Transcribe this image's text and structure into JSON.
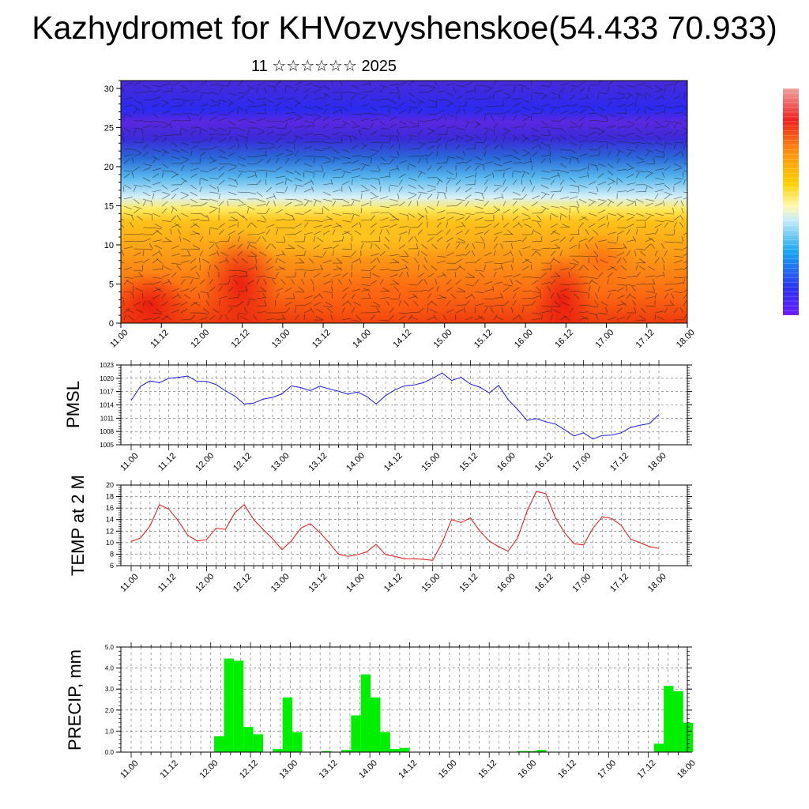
{
  "title": "Kazhydromet for KHVozvyshenskoe(54.433 70.933)",
  "subtitle": "11 ☆☆☆☆☆☆ 2025",
  "colors": {
    "pmsl_line": "#1a1adb",
    "temp_line": "#e01010",
    "precip_bar": "#00ee00"
  },
  "chart_data": [
    {
      "type": "heatmap",
      "title": "",
      "xlabel": "",
      "ylabel": "",
      "ylim": [
        0,
        31
      ],
      "yticks": [
        "0",
        "5",
        "10",
        "15",
        "20",
        "25",
        "30"
      ],
      "xticks": [
        "11.00",
        "11.12",
        "12.00",
        "12.12",
        "13.00",
        "13.12",
        "14.00",
        "14.12",
        "15.00",
        "15.12",
        "16.00",
        "16.12",
        "17.00",
        "17.12",
        "18.00"
      ],
      "colorbar": "blue-to-red",
      "overlay": "wind barbs"
    },
    {
      "type": "line",
      "ylabel": "PMSL",
      "ylim": [
        1005,
        1023
      ],
      "yticks": [
        "1005",
        "1008",
        "1011",
        "1014",
        "1017",
        "1020",
        "1023"
      ],
      "xticks": [
        "11.00",
        "11.12",
        "12.00",
        "12.12",
        "13.00",
        "13.12",
        "14.00",
        "14.12",
        "15.00",
        "15.12",
        "16.00",
        "16.12",
        "17.00",
        "17.12",
        "18.00"
      ],
      "series": [
        {
          "values": [
            1015.0,
            1018.2,
            1019.4,
            1019.0,
            1020.0,
            1020.2,
            1020.5,
            1019.3,
            1019.3,
            1018.6,
            1017.2,
            1016.0,
            1014.2,
            1014.4,
            1015.3,
            1015.7,
            1016.5,
            1018.3,
            1017.9,
            1017.2,
            1018.2,
            1017.6,
            1017.1,
            1016.4,
            1016.9,
            1015.9,
            1014.2,
            1016.1,
            1017.4,
            1018.3,
            1018.5,
            1019.0,
            1020.0,
            1021.2,
            1019.5,
            1020.2,
            1018.7,
            1018.0,
            1016.7,
            1018.4,
            1015.2,
            1013.0,
            1010.5,
            1010.9,
            1010.2,
            1009.7,
            1008.4,
            1007.0,
            1007.7,
            1006.3,
            1007.1,
            1007.2,
            1007.7,
            1008.9,
            1009.4,
            1009.8,
            1011.8
          ]
        }
      ]
    },
    {
      "type": "line",
      "ylabel": "TEMP at 2 M",
      "ylim": [
        6,
        20
      ],
      "yticks": [
        "6",
        "8",
        "10",
        "12",
        "14",
        "16",
        "18",
        "20"
      ],
      "xticks": [
        "11.00",
        "11.12",
        "12.00",
        "12.12",
        "13.00",
        "13.12",
        "14.00",
        "14.12",
        "15.00",
        "15.12",
        "16.00",
        "16.12",
        "17.00",
        "17.12",
        "18.00"
      ],
      "series": [
        {
          "values": [
            10.2,
            10.8,
            12.9,
            16.6,
            15.8,
            13.8,
            11.3,
            10.3,
            10.5,
            12.5,
            12.3,
            15.2,
            16.6,
            14.0,
            12.3,
            10.7,
            8.8,
            10.3,
            12.5,
            13.3,
            11.8,
            10.0,
            8.0,
            7.6,
            7.9,
            8.4,
            9.7,
            7.9,
            7.6,
            7.2,
            7.2,
            7.1,
            6.9,
            10.0,
            14.0,
            13.5,
            14.3,
            12.0,
            10.3,
            9.3,
            8.5,
            10.8,
            15.4,
            18.9,
            18.5,
            14.4,
            11.7,
            9.8,
            9.6,
            12.5,
            14.5,
            14.2,
            13.0,
            10.6,
            10.0,
            9.3,
            9.0
          ]
        }
      ]
    },
    {
      "type": "bar",
      "ylabel": "PRECIP, mm",
      "ylim": [
        0,
        5
      ],
      "yticks": [
        "0.0",
        "1.0",
        "2.0",
        "3.0",
        "4.0",
        "5.0"
      ],
      "xticks": [
        "11.00",
        "11.12",
        "12.00",
        "12.12",
        "13.00",
        "13.12",
        "14.00",
        "14.12",
        "15.00",
        "15.12",
        "16.00",
        "16.12",
        "17.00",
        "17.12",
        "18.00"
      ],
      "series": [
        {
          "values": [
            0,
            0,
            0,
            0,
            0,
            0,
            0,
            0,
            0,
            0.75,
            4.45,
            4.35,
            1.2,
            0.85,
            0,
            0.15,
            2.6,
            0.95,
            0,
            0,
            0.05,
            0,
            0.1,
            1.75,
            3.7,
            2.6,
            0.95,
            0.15,
            0.2,
            0,
            0,
            0,
            0,
            0,
            0,
            0,
            0,
            0,
            0,
            0,
            0.05,
            0.05,
            0.1,
            0,
            0,
            0,
            0,
            0,
            0,
            0,
            0,
            0,
            0,
            0,
            0.4,
            3.15,
            2.9,
            1.4
          ]
        }
      ]
    }
  ]
}
